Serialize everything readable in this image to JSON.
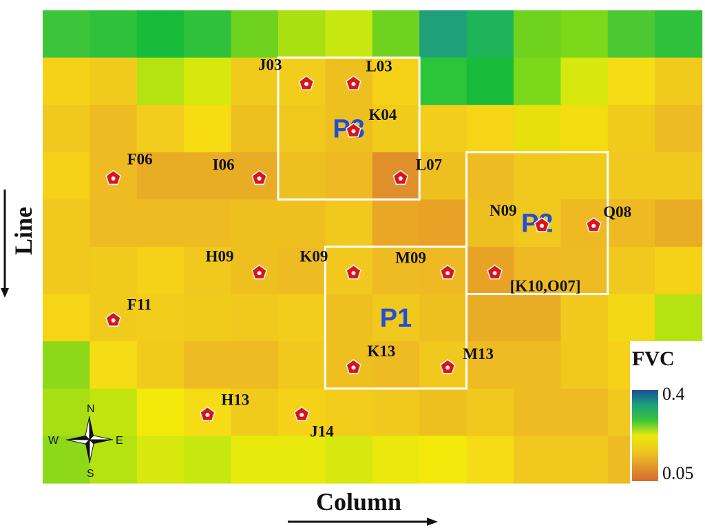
{
  "map": {
    "grid_colors": [
      [
        "#3cc43a",
        "#2fc13c",
        "#18bb3a",
        "#2fc13c",
        "#6ed21f",
        "#a8e012",
        "#c6e80f",
        "#6ed21f",
        "#1fa07a",
        "#1fb35a",
        "#6ed21f",
        "#7cd81a",
        "#4cc834",
        "#2fc13c"
      ],
      [
        "#f5d118",
        "#f1cb1c",
        "#b5e211",
        "#d6e80d",
        "#f1cb1c",
        "#f3cd1b",
        "#eec01f",
        "#f5d118",
        "#2cc438",
        "#18bb3a",
        "#7cd81a",
        "#d6e80d",
        "#f5dc14",
        "#f1cb1c"
      ],
      [
        "#f1c81d",
        "#eebc22",
        "#f3cd1b",
        "#f7dc14",
        "#eec01f",
        "#f1c81d",
        "#eec01f",
        "#f1cb1c",
        "#f3cd1b",
        "#f5d516",
        "#e8e00c",
        "#f3dc10",
        "#f1cb1c",
        "#eebc22"
      ],
      [
        "#f5d118",
        "#eebc22",
        "#e9ad25",
        "#e9ad25",
        "#e9ad25",
        "#eec01f",
        "#eeb922",
        "#e0902b",
        "#eec01f",
        "#eebc22",
        "#f1c81d",
        "#f1cb1c",
        "#f1c81d",
        "#f1c81d"
      ],
      [
        "#f1c81d",
        "#eebc22",
        "#eebc22",
        "#eebc22",
        "#eec01f",
        "#eec01f",
        "#f1c81d",
        "#e9a725",
        "#e8a326",
        "#eec01f",
        "#f1c81d",
        "#eeb922",
        "#eeb922",
        "#e9ad25"
      ],
      [
        "#f1c81d",
        "#f1cb1c",
        "#f5d118",
        "#f1c81d",
        "#eec01f",
        "#eebc22",
        "#f1c81d",
        "#eebc22",
        "#eeb922",
        "#e8a326",
        "#eeb922",
        "#eebc22",
        "#f1c81d",
        "#f5d118"
      ],
      [
        "#f5d516",
        "#f1cb1c",
        "#f3cd1b",
        "#f1cb1c",
        "#f1c81d",
        "#f3cd1b",
        "#eec01f",
        "#f1c81d",
        "#eec01f",
        "#e9ad25",
        "#e9ad25",
        "#f1c81d",
        "#f3d816",
        "#b5e211"
      ],
      [
        "#8ed81a",
        "#f5dc14",
        "#f1cb1c",
        "#eebc22",
        "#eebc22",
        "#f1c81d",
        "#eec01f",
        "#eebc22",
        "#f1c81d",
        "#eebc22",
        "#eebc22",
        "#f1c81d",
        "#f5d118",
        "#f5d118"
      ],
      [
        "#a8de14",
        "#c2e50f",
        "#f3ea0c",
        "#f5dc14",
        "#f1cb1c",
        "#f5d118",
        "#f3cd1b",
        "#f1c81d",
        "#eec01f",
        "#f1c81d",
        "#eebc22",
        "#eebc22",
        "#f1c81d",
        "#f1cb1c"
      ],
      [
        "#8ed81a",
        "#b5e211",
        "#d6e80d",
        "#c6e80f",
        "#e8ea0c",
        "#e8ea0c",
        "#d6e80d",
        "#eae80c",
        "#f3ea0c",
        "#f5dc14",
        "#f1c81d",
        "#f1c81d",
        "#eebc22",
        "#f1c81d"
      ]
    ],
    "sites": [
      {
        "id": "J03",
        "col": 5.6,
        "row": 1.55
      },
      {
        "id": "L03",
        "col": 6.6,
        "row": 1.55
      },
      {
        "id": "K04",
        "col": 6.6,
        "row": 2.55
      },
      {
        "id": "F06",
        "col": 1.5,
        "row": 3.55
      },
      {
        "id": "I06",
        "col": 4.6,
        "row": 3.55
      },
      {
        "id": "L07",
        "col": 7.6,
        "row": 3.55
      },
      {
        "id": "N09",
        "col": 10.6,
        "row": 4.55
      },
      {
        "id": "Q08",
        "col": 11.7,
        "row": 4.55
      },
      {
        "id": "H09",
        "col": 4.6,
        "row": 5.55
      },
      {
        "id": "K09",
        "col": 6.6,
        "row": 5.55
      },
      {
        "id": "M09",
        "col": 8.6,
        "row": 5.55
      },
      {
        "id": "[K10,O07]",
        "col": 9.6,
        "row": 5.55
      },
      {
        "id": "F11",
        "col": 1.5,
        "row": 6.55
      },
      {
        "id": "K13",
        "col": 6.6,
        "row": 7.55
      },
      {
        "id": "M13",
        "col": 8.6,
        "row": 7.55
      },
      {
        "id": "H13",
        "col": 3.5,
        "row": 8.55
      },
      {
        "id": "J14",
        "col": 5.5,
        "row": 8.55
      }
    ],
    "plots": [
      {
        "label": "P1",
        "col0": 6,
        "row0": 5,
        "col1": 9,
        "row1": 8
      },
      {
        "label": "P2",
        "col0": 9,
        "row0": 3,
        "col1": 12,
        "row1": 6
      },
      {
        "label": "P3",
        "col0": 5,
        "row0": 1,
        "col1": 8,
        "row1": 4
      }
    ]
  },
  "axes": {
    "x_label": "Column",
    "y_label": "Line"
  },
  "legend": {
    "title": "FVC",
    "max_label": "0.4",
    "min_label": "0.05",
    "max_value": 0.4,
    "min_value": 0.05,
    "colors": [
      "#1a4f9c",
      "#1aa37a",
      "#3cc43a",
      "#e8ea0c",
      "#f1c81d",
      "#e09a2c",
      "#d76a30"
    ]
  },
  "compass": {
    "north": "N",
    "south": "S",
    "east": "E",
    "west": "W"
  },
  "colors": {
    "marker_fill": "#d9151c",
    "plot_outline": "#ffffff",
    "plot_label": "#1f4fd6"
  }
}
